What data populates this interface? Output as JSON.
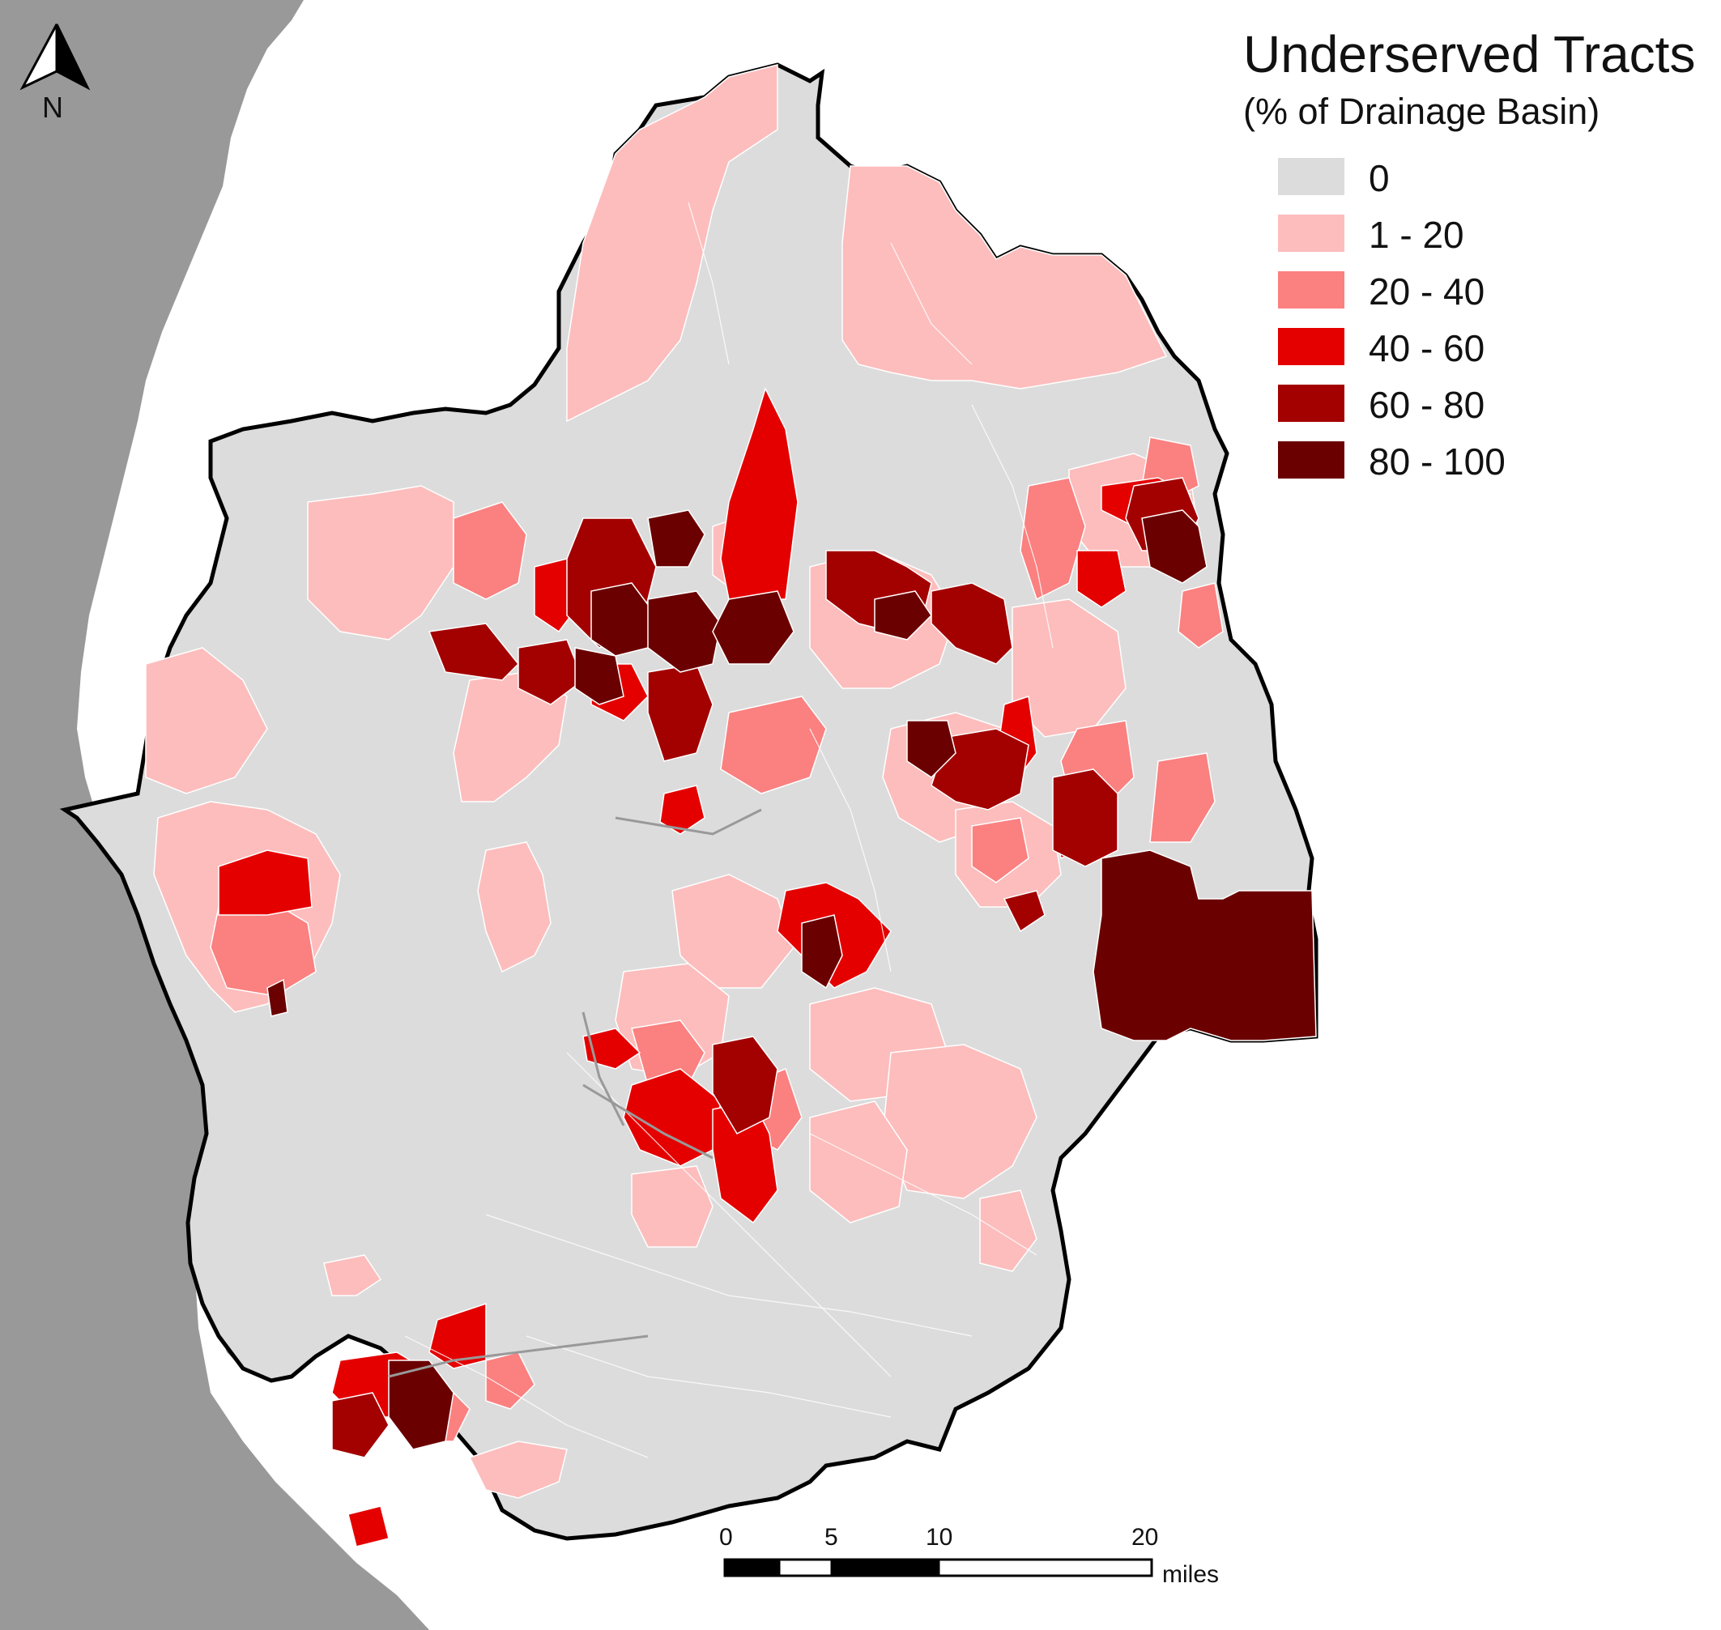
{
  "map": {
    "title": "Underserved Tracts",
    "subtitle": "(% of Drainage Basin)",
    "legend": [
      {
        "label": "0",
        "color": "#dcdcdc"
      },
      {
        "label": "1 - 20",
        "color": "#fdbdbd"
      },
      {
        "label": "20 - 40",
        "color": "#fb8080"
      },
      {
        "label": "40 - 60",
        "color": "#e50000"
      },
      {
        "label": "60 - 80",
        "color": "#a30000"
      },
      {
        "label": "80 - 100",
        "color": "#6b0000"
      }
    ],
    "north_arrow": {
      "label": "N"
    },
    "scale_bar": {
      "ticks": [
        "0",
        "5",
        "10",
        "20"
      ],
      "unit": "miles"
    },
    "colors": {
      "water": "#999999",
      "land_outside": "#ffffff",
      "boundary": "#000000",
      "tract_edges": "#ffffff"
    }
  }
}
